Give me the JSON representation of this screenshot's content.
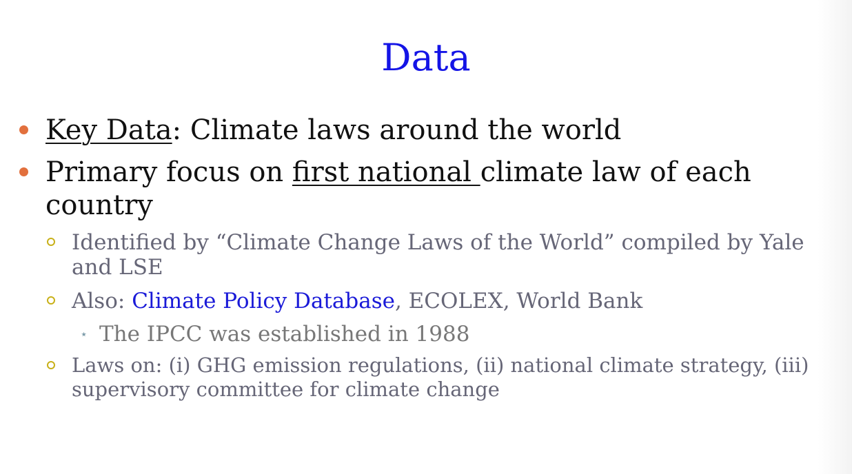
{
  "slide": {
    "title": "Data",
    "bullets": [
      {
        "underlined": "Key Data",
        "text": ": Climate laws around the world"
      },
      {
        "before": "Primary focus on ",
        "underlined": "first national ",
        "after": "climate law of each country"
      }
    ],
    "sub_bullets": [
      {
        "text": "Identified by “Climate Change Laws of the World” compiled by Yale and LSE"
      },
      {
        "prefix": "Also: ",
        "link": "Climate Policy Database",
        "suffix": ", ECOLEX, World Bank"
      },
      {
        "text": "Laws on: (i) GHG emission regulations, (ii) national climate strategy, (iii) supervisory committee for climate change"
      }
    ],
    "sub_sub_bullets": [
      {
        "text": "The IPCC was established in 1988"
      }
    ]
  },
  "colors": {
    "title": "#1414e6",
    "bullet_dot": "#e2703d",
    "sub_bullet_ring": "#c8b018",
    "link": "#1a1ad8"
  },
  "icons": {
    "bullet": "filled-circle",
    "sub_bullet": "hollow-circle",
    "sub_sub_bullet": "star-cross"
  }
}
